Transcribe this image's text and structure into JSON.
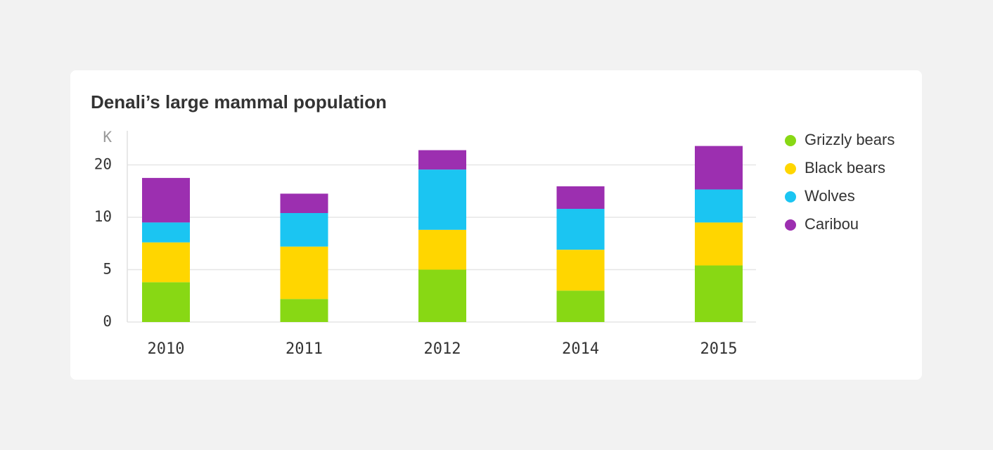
{
  "chart_data": {
    "type": "stacked_bar",
    "title": "Denali’s large mammal population",
    "y_label": "K",
    "categories": [
      "2010",
      "2011",
      "2012",
      "2014",
      "2015"
    ],
    "series": [
      {
        "name": "Grizzly bears",
        "color": "#88d814",
        "values": [
          3.8,
          2.2,
          5.0,
          3.0,
          5.4
        ]
      },
      {
        "name": "Black bears",
        "color": "#ffd600",
        "values": [
          3.8,
          5.0,
          3.8,
          3.9,
          4.1
        ]
      },
      {
        "name": "Wolves",
        "color": "#1bc5f2",
        "values": [
          1.9,
          3.6,
          10.3,
          4.7,
          5.8
        ]
      },
      {
        "name": "Caribou",
        "color": "#9c2fb0",
        "values": [
          8.0,
          3.7,
          3.7,
          4.3,
          8.3
        ]
      }
    ],
    "ylim": [
      0,
      26.5
    ],
    "yticks": [
      0,
      5,
      10,
      20
    ],
    "yscale": "piecewise",
    "grid": true,
    "legend": "right"
  }
}
